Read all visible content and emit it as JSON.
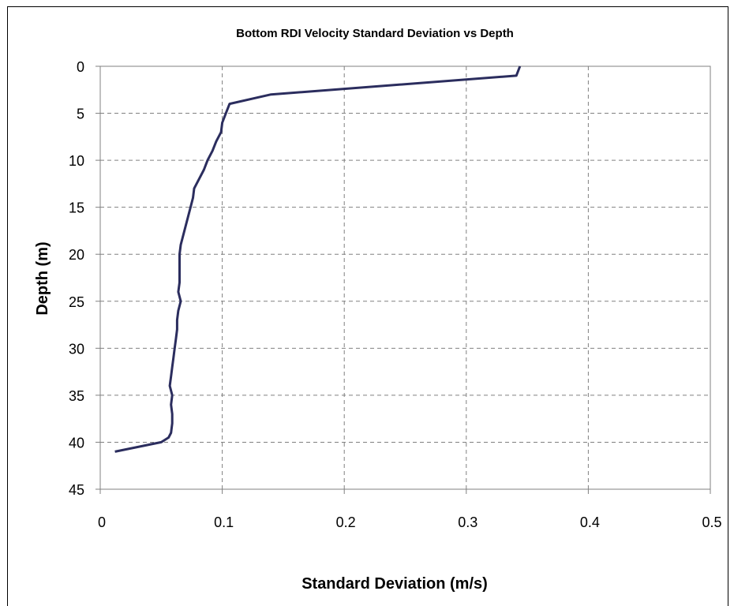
{
  "chart_data": {
    "type": "line",
    "title": "Bottom RDI Velocity Standard Deviation vs Depth",
    "xlabel": "Standard Deviation (m/s)",
    "ylabel": "Depth (m)",
    "xlim": [
      0,
      0.5
    ],
    "ylim": [
      0,
      45
    ],
    "y_inverted": true,
    "x_ticks": [
      "0",
      "0.1",
      "0.2",
      "0.3",
      "0.4",
      "0.5"
    ],
    "y_ticks": [
      "0",
      "5",
      "10",
      "15",
      "20",
      "25",
      "30",
      "35",
      "40",
      "45"
    ],
    "grid": true,
    "line_color": "#2b2d5e",
    "series": [
      {
        "x": [
          0.344,
          0.341,
          0.14,
          0.106,
          0.103,
          0.1,
          0.099,
          0.095,
          0.092,
          0.088,
          0.085,
          0.081,
          0.077,
          0.076,
          0.074,
          0.072,
          0.07,
          0.068,
          0.066,
          0.065,
          0.065,
          0.065,
          0.065,
          0.064,
          0.066,
          0.064,
          0.063,
          0.063,
          0.062,
          0.061,
          0.06,
          0.059,
          0.058,
          0.057,
          0.059,
          0.058,
          0.059,
          0.059,
          0.058,
          0.056,
          0.05,
          0.012
        ],
        "y": [
          0,
          1,
          3,
          4,
          5,
          6,
          7,
          8,
          9,
          10,
          11,
          12,
          13,
          14,
          15,
          16,
          17,
          18,
          19,
          20,
          21,
          22,
          23,
          24,
          25,
          26,
          27,
          28,
          29,
          30,
          31,
          32,
          33,
          34,
          35,
          36,
          37,
          38,
          39,
          39.5,
          40,
          41
        ]
      }
    ]
  }
}
